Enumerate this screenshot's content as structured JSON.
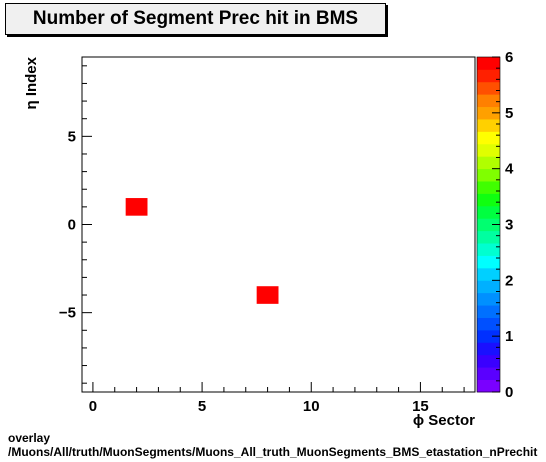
{
  "chart_data": {
    "type": "heatmap",
    "title": "Number of Segment Prec hit in BMS",
    "xlabel": "ϕ Sector",
    "ylabel": "η Index",
    "xlim": [
      -0.5,
      17.5
    ],
    "ylim": [
      -9.5,
      9.5
    ],
    "x_ticks": [
      "0",
      "5",
      "10",
      "15"
    ],
    "y_ticks": [
      "−5",
      "0",
      "5"
    ],
    "z_ticks": [
      "0",
      "1",
      "2",
      "3",
      "4",
      "5",
      "6"
    ],
    "zlim": [
      0,
      6
    ],
    "cells": [
      {
        "x": 2,
        "y": 1,
        "z": 6
      },
      {
        "x": 8,
        "y": -4,
        "z": 6
      }
    ],
    "palette": [
      "#7a00ff",
      "#5a00ff",
      "#3a00ff",
      "#1a10ff",
      "#0030ff",
      "#0050ff",
      "#0070ff",
      "#0090ff",
      "#00b0ff",
      "#00d0ff",
      "#00ffff",
      "#00ffd0",
      "#00ffa0",
      "#00ff70",
      "#00ff40",
      "#10ff10",
      "#40ff00",
      "#80ff00",
      "#b0ff00",
      "#e0ff00",
      "#ffff00",
      "#ffd000",
      "#ffa000",
      "#ff8000",
      "#ff5000",
      "#ff2000",
      "#ff0000"
    ],
    "grid": false
  },
  "footer": {
    "line1": "overlay",
    "line2": "/Muons/All/truth/MuonSegments/Muons_All_truth_MuonSegments_BMS_etastation_nPrechit"
  }
}
